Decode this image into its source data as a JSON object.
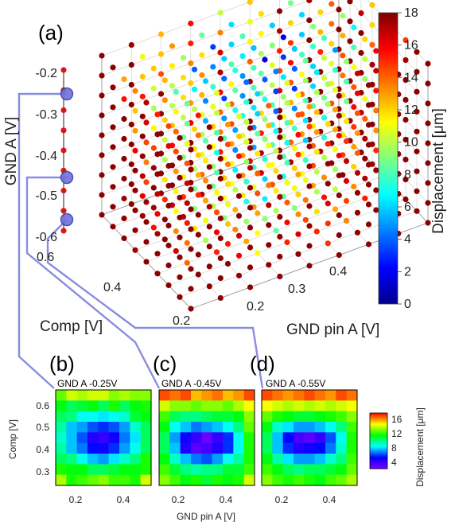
{
  "chart_data": [
    {
      "type": "scatter3d",
      "panel_label": "(a)",
      "xlabel": "Comp [V]",
      "ylabel": "GND pin A [V]",
      "zlabel": "GND A [V]",
      "x_ticks": [
        "0.6",
        "0.4",
        "0.2"
      ],
      "y_ticks": [
        "0.2",
        "0.3",
        "0.4"
      ],
      "z_ticks": [
        "-0.2",
        "-0.3",
        "-0.4",
        "-0.5",
        "-0.6"
      ],
      "xlim": [
        0.2,
        0.6
      ],
      "ylim": [
        0.15,
        0.45
      ],
      "zlim": [
        -0.6,
        -0.2
      ],
      "grid": true,
      "colorbar": {
        "label": "Displacement [μm]",
        "min": 0,
        "max": 18,
        "ticks": [
          "0",
          "2",
          "4",
          "6",
          "8",
          "10",
          "12",
          "14",
          "16",
          "18"
        ],
        "colormap": "jet"
      },
      "highlight_slices_gnd_a": [
        -0.25,
        -0.45,
        -0.55
      ]
    },
    {
      "type": "heatmap",
      "panel_label": "(b)",
      "title": "GND A -0.25V",
      "xlabel": "",
      "ylabel": "Comp [V]",
      "x_ticks": [
        "0.2",
        "0.4"
      ],
      "y_ticks": [
        "0.6",
        "0.5",
        "0.4",
        "0.3"
      ],
      "rows_top_to_bottom": [
        [
          12.5,
          14.0,
          13.5,
          14.0,
          14.0,
          13.0,
          13.5,
          13.0,
          13.0
        ],
        [
          11.0,
          10.0,
          10.5,
          11.0,
          10.0,
          11.5,
          10.0,
          11.0,
          11.5
        ],
        [
          10.0,
          9.5,
          8.0,
          8.0,
          7.5,
          8.0,
          8.5,
          10.5,
          11.0
        ],
        [
          9.0,
          7.0,
          6.5,
          5.5,
          5.0,
          5.5,
          6.5,
          8.5,
          10.0
        ],
        [
          8.5,
          7.0,
          5.5,
          3.5,
          3.0,
          4.0,
          6.0,
          7.5,
          10.0
        ],
        [
          9.0,
          7.0,
          6.0,
          4.5,
          4.0,
          5.0,
          6.5,
          8.0,
          10.0
        ],
        [
          10.0,
          9.5,
          8.0,
          7.0,
          6.5,
          7.5,
          8.5,
          9.5,
          11.5
        ],
        [
          11.5,
          11.0,
          11.0,
          10.0,
          10.0,
          10.5,
          11.0,
          11.0,
          11.5
        ],
        [
          13.5,
          11.5,
          12.0,
          12.5,
          13.0,
          12.0,
          12.0,
          11.5,
          14.0
        ]
      ]
    },
    {
      "type": "heatmap",
      "panel_label": "(c)",
      "title": "GND A -0.45V",
      "xlabel": "GND pin A [V]",
      "ylabel": "",
      "x_ticks": [
        "0.2",
        "0.4"
      ],
      "y_ticks": [
        "0.6",
        "0.5",
        "0.4",
        "0.3"
      ],
      "rows_top_to_bottom": [
        [
          17.0,
          16.5,
          17.0,
          15.5,
          16.0,
          16.5,
          15.5,
          16.0,
          17.0
        ],
        [
          14.0,
          13.0,
          13.0,
          12.5,
          13.0,
          13.0,
          12.5,
          13.5,
          14.5
        ],
        [
          12.0,
          10.0,
          9.5,
          9.5,
          10.0,
          10.5,
          10.5,
          11.0,
          13.0
        ],
        [
          11.0,
          8.0,
          7.0,
          6.0,
          6.5,
          7.0,
          8.0,
          9.5,
          12.5
        ],
        [
          10.0,
          6.5,
          4.0,
          3.0,
          1.5,
          3.0,
          5.0,
          8.0,
          11.5
        ],
        [
          10.0,
          7.0,
          3.5,
          2.0,
          2.5,
          3.5,
          5.0,
          8.0,
          11.5
        ],
        [
          11.0,
          8.5,
          7.0,
          6.0,
          5.5,
          6.5,
          8.0,
          9.0,
          11.5
        ],
        [
          12.0,
          10.5,
          9.5,
          9.0,
          9.5,
          9.5,
          10.5,
          10.5,
          12.0
        ],
        [
          13.0,
          12.0,
          11.0,
          11.5,
          10.5,
          11.5,
          11.0,
          11.5,
          14.0
        ]
      ]
    },
    {
      "type": "heatmap",
      "panel_label": "(d)",
      "title": "GND A -0.55V",
      "xlabel": "",
      "ylabel": "",
      "x_ticks": [
        "0.2",
        "0.4"
      ],
      "y_ticks": [
        "0.6",
        "0.5",
        "0.4",
        "0.3"
      ],
      "rows_top_to_bottom": [
        [
          17.0,
          16.5,
          16.0,
          16.5,
          17.0,
          16.5,
          16.0,
          17.0,
          16.5
        ],
        [
          14.5,
          14.0,
          13.5,
          14.0,
          13.5,
          14.0,
          13.5,
          14.0,
          14.5
        ],
        [
          12.5,
          11.5,
          11.0,
          10.5,
          10.5,
          11.0,
          11.5,
          12.0,
          13.0
        ],
        [
          11.0,
          8.5,
          7.5,
          6.5,
          6.5,
          7.0,
          8.0,
          9.5,
          12.0
        ],
        [
          10.0,
          7.0,
          4.5,
          2.5,
          2.0,
          3.0,
          5.5,
          8.0,
          11.5
        ],
        [
          10.0,
          7.0,
          5.0,
          3.5,
          4.0,
          4.5,
          6.0,
          8.5,
          11.5
        ],
        [
          11.0,
          9.0,
          7.5,
          6.5,
          6.5,
          7.0,
          8.5,
          9.5,
          12.0
        ],
        [
          12.0,
          11.0,
          10.0,
          9.5,
          10.0,
          10.0,
          10.5,
          11.0,
          12.5
        ],
        [
          13.0,
          12.0,
          11.5,
          12.0,
          11.5,
          11.0,
          12.0,
          12.5,
          13.5
        ]
      ]
    },
    {
      "type": "colorbar",
      "label": "Displacement [μm]",
      "ticks": [
        "16",
        "12",
        "8",
        "4"
      ],
      "min": 1,
      "max": 18,
      "colormap": "rainbow"
    }
  ]
}
